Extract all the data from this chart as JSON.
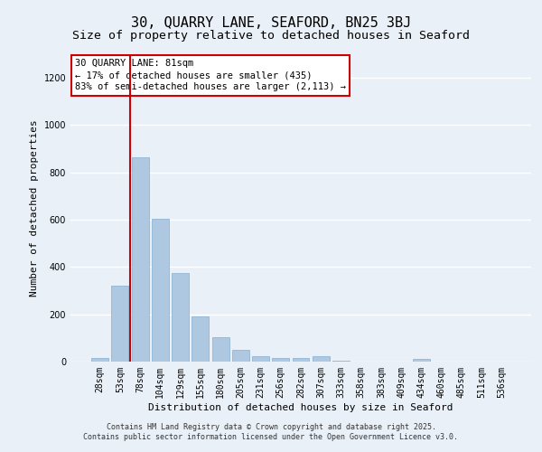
{
  "title": "30, QUARRY LANE, SEAFORD, BN25 3BJ",
  "subtitle": "Size of property relative to detached houses in Seaford",
  "xlabel": "Distribution of detached houses by size in Seaford",
  "ylabel": "Number of detached properties",
  "categories": [
    "28sqm",
    "53sqm",
    "78sqm",
    "104sqm",
    "129sqm",
    "155sqm",
    "180sqm",
    "205sqm",
    "231sqm",
    "256sqm",
    "282sqm",
    "307sqm",
    "333sqm",
    "358sqm",
    "383sqm",
    "409sqm",
    "434sqm",
    "460sqm",
    "485sqm",
    "511sqm",
    "536sqm"
  ],
  "values": [
    15,
    320,
    865,
    605,
    375,
    190,
    105,
    50,
    22,
    17,
    17,
    22,
    5,
    0,
    0,
    0,
    12,
    0,
    0,
    0,
    0
  ],
  "bar_color": "#adc8e0",
  "bar_edge_color": "#85afd0",
  "bg_color": "#eaf0f8",
  "grid_color": "#ffffff",
  "annotation_text": "30 QUARRY LANE: 81sqm\n← 17% of detached houses are smaller (435)\n83% of semi-detached houses are larger (2,113) →",
  "annotation_box_color": "#ffffff",
  "annotation_box_edge_color": "#cc0000",
  "vline_color": "#cc0000",
  "vline_x": 1.5,
  "ylim": [
    0,
    1300
  ],
  "yticks": [
    0,
    200,
    400,
    600,
    800,
    1000,
    1200
  ],
  "footnote": "Contains HM Land Registry data © Crown copyright and database right 2025.\nContains public sector information licensed under the Open Government Licence v3.0.",
  "title_fontsize": 11,
  "subtitle_fontsize": 9.5,
  "axis_label_fontsize": 8,
  "tick_fontsize": 7,
  "annotation_fontsize": 7.5,
  "footnote_fontsize": 6
}
